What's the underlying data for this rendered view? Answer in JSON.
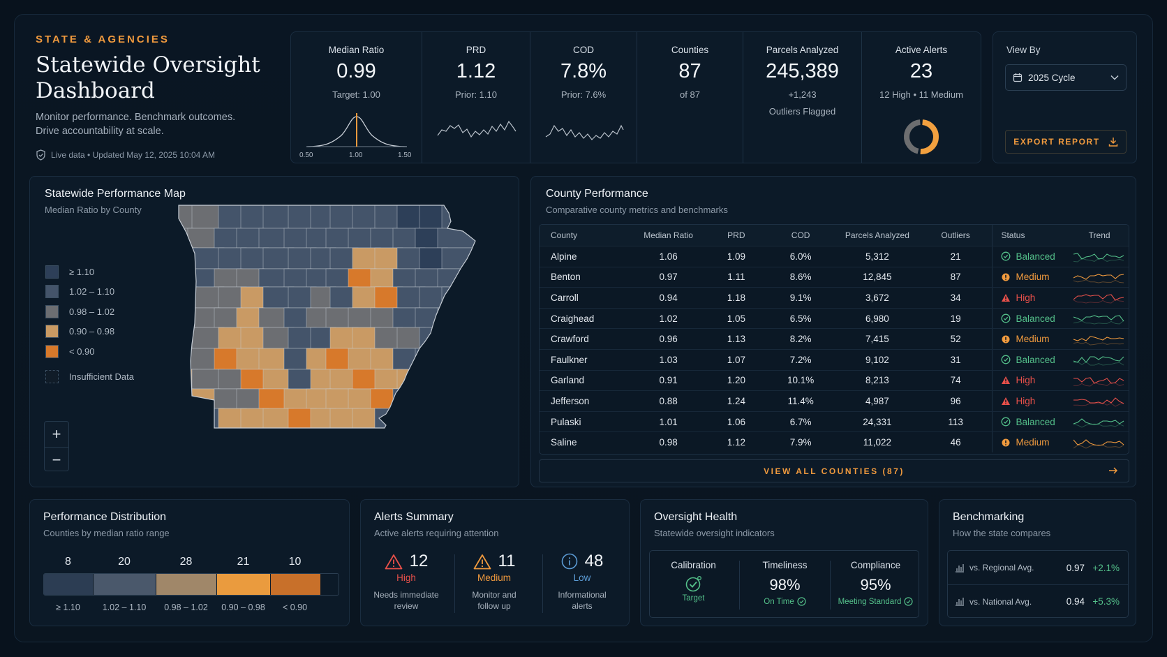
{
  "header": {
    "eyebrow": "STATE & AGENCIES",
    "title_line1": "Statewide Oversight",
    "title_line2": "Dashboard",
    "subtitle": "Monitor performance. Benchmark outcomes. Drive accountability at scale.",
    "live": "Live data • Updated May 12, 2025 10:04 AM"
  },
  "kpis": {
    "median_ratio": {
      "label": "Median Ratio",
      "value": "0.99",
      "sub": "Target: 1.00",
      "ticks": [
        "0.50",
        "1.00",
        "1.50"
      ]
    },
    "prd": {
      "label": "PRD",
      "value": "1.12",
      "sub": "Prior: 1.10"
    },
    "cod": {
      "label": "COD",
      "value": "7.8%",
      "sub": "Prior: 7.6%"
    },
    "counties": {
      "label": "Counties",
      "value": "87",
      "sub": "of 87"
    },
    "parcels": {
      "label": "Parcels Analyzed",
      "value": "245,389",
      "sub": "+1,243",
      "sub2": "Outliers Flagged"
    },
    "alerts": {
      "label": "Active Alerts",
      "value": "23",
      "sub": "12 High • 11 Medium",
      "high": 12,
      "medium": 11
    }
  },
  "viewby": {
    "label": "View By",
    "selected": "2025 Cycle",
    "export": "EXPORT REPORT"
  },
  "map": {
    "title": "Statewide Performance Map",
    "subtitle": "Median Ratio by County",
    "legend": [
      {
        "label": "≥ 1.10",
        "color": "#2d3f58"
      },
      {
        "label": "1.02 – 1.10",
        "color": "#44546a"
      },
      {
        "label": "0.98 – 1.02",
        "color": "#6c6e72"
      },
      {
        "label": "0.90 – 0.98",
        "color": "#c99a64"
      },
      {
        "label": "< 0.90",
        "color": "#d7792b"
      },
      {
        "label": "Insufficient Data",
        "color": "#101c28"
      }
    ],
    "zoom_in": "+",
    "zoom_out": "−"
  },
  "county": {
    "title": "County Performance",
    "subtitle": "Comparative county metrics and benchmarks",
    "columns": [
      "County",
      "Median Ratio",
      "PRD",
      "COD",
      "Parcels Analyzed",
      "Outliers",
      "Status",
      "Trend"
    ],
    "rows": [
      {
        "county": "Alpine",
        "ratio": "1.06",
        "prd": "1.09",
        "cod": "6.0%",
        "parcels": "5,312",
        "outliers": "21",
        "status": "Balanced"
      },
      {
        "county": "Benton",
        "ratio": "0.97",
        "prd": "1.11",
        "cod": "8.6%",
        "parcels": "12,845",
        "outliers": "87",
        "status": "Medium"
      },
      {
        "county": "Carroll",
        "ratio": "0.94",
        "prd": "1.18",
        "cod": "9.1%",
        "parcels": "3,672",
        "outliers": "34",
        "status": "High"
      },
      {
        "county": "Craighead",
        "ratio": "1.02",
        "prd": "1.05",
        "cod": "6.5%",
        "parcels": "6,980",
        "outliers": "19",
        "status": "Balanced"
      },
      {
        "county": "Crawford",
        "ratio": "0.96",
        "prd": "1.13",
        "cod": "8.2%",
        "parcels": "7,415",
        "outliers": "52",
        "status": "Medium"
      },
      {
        "county": "Faulkner",
        "ratio": "1.03",
        "prd": "1.07",
        "cod": "7.2%",
        "parcels": "9,102",
        "outliers": "31",
        "status": "Balanced"
      },
      {
        "county": "Garland",
        "ratio": "0.91",
        "prd": "1.20",
        "cod": "10.1%",
        "parcels": "8,213",
        "outliers": "74",
        "status": "High"
      },
      {
        "county": "Jefferson",
        "ratio": "0.88",
        "prd": "1.24",
        "cod": "11.4%",
        "parcels": "4,987",
        "outliers": "96",
        "status": "High"
      },
      {
        "county": "Pulaski",
        "ratio": "1.01",
        "prd": "1.06",
        "cod": "6.7%",
        "parcels": "24,331",
        "outliers": "113",
        "status": "Balanced"
      },
      {
        "county": "Saline",
        "ratio": "0.98",
        "prd": "1.12",
        "cod": "7.9%",
        "parcels": "11,022",
        "outliers": "46",
        "status": "Medium"
      }
    ],
    "view_all": "VIEW ALL COUNTIES (87)"
  },
  "distribution": {
    "title": "Performance Distribution",
    "subtitle": "Counties by median ratio range",
    "buckets": [
      {
        "label": "≥ 1.10",
        "count": "8",
        "color": "#2c3d53"
      },
      {
        "label": "1.02 – 1.10",
        "count": "20",
        "color": "#4a586b"
      },
      {
        "label": "0.98 – 1.02",
        "count": "28",
        "color": "#a08769"
      },
      {
        "label": "0.90 – 0.98",
        "count": "21",
        "color": "#ea9b3e"
      },
      {
        "label": "< 0.90",
        "count": "10",
        "color": "#c8702a"
      }
    ]
  },
  "alerts": {
    "title": "Alerts Summary",
    "subtitle": "Active alerts requiring attention",
    "items": [
      {
        "count": "12",
        "level": "High",
        "desc1": "Needs immediate",
        "desc2": "review"
      },
      {
        "count": "11",
        "level": "Medium",
        "desc1": "Monitor and",
        "desc2": "follow up"
      },
      {
        "count": "48",
        "level": "Low",
        "desc1": "Informational",
        "desc2": "alerts"
      }
    ]
  },
  "health": {
    "title": "Oversight Health",
    "subtitle": "Statewide oversight indicators",
    "items": [
      {
        "label": "Calibration",
        "value": "",
        "note": "Target"
      },
      {
        "label": "Timeliness",
        "value": "98%",
        "note": "On Time"
      },
      {
        "label": "Compliance",
        "value": "95%",
        "note": "Meeting Standard"
      }
    ]
  },
  "bench": {
    "title": "Benchmarking",
    "subtitle": "How the state compares",
    "rows": [
      {
        "label": "vs. Regional Avg.",
        "value": "0.97",
        "delta": "+2.1%"
      },
      {
        "label": "vs. National Avg.",
        "value": "0.94",
        "delta": "+5.3%"
      }
    ]
  },
  "colors": {
    "accent": "#f09a3e",
    "balanced": "#54c08a",
    "high": "#e8504a",
    "low": "#5c9cd6"
  }
}
